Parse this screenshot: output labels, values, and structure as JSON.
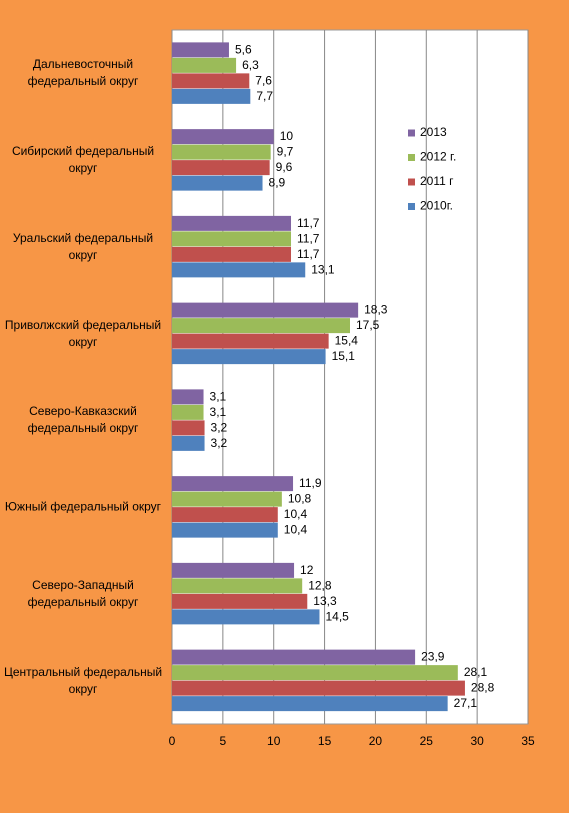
{
  "chart_data": {
    "type": "hbar",
    "categories": [
      "Дальневосточный федеральный округ",
      "Сибирский федеральный округ",
      "Уральский федеральный округ",
      "Приволжский федеральный округ",
      "Северо-Кавказский федеральный округ",
      "Южный федеральный округ",
      "Северо-Западный федеральный округ",
      "Центральный федеральный округ"
    ],
    "series": [
      {
        "name": "2013",
        "color": "#8064a2",
        "values": [
          5.6,
          10,
          11.7,
          18.3,
          3.1,
          11.9,
          12,
          23.9
        ],
        "value_labels": [
          "5,6",
          "10",
          "11,7",
          "18,3",
          "3,1",
          "11,9",
          "12",
          "23,9"
        ]
      },
      {
        "name": "2012 г.",
        "color": "#9bbb59",
        "values": [
          6.3,
          9.7,
          11.7,
          17.5,
          3.1,
          10.8,
          12.8,
          28.1
        ],
        "value_labels": [
          "6,3",
          "9,7",
          "11,7",
          "17,5",
          "3,1",
          "10,8",
          "12,8",
          "28,1"
        ]
      },
      {
        "name": "2011 г",
        "color": "#c0504d",
        "values": [
          7.6,
          9.6,
          11.7,
          15.4,
          3.2,
          10.4,
          13.3,
          28.8
        ],
        "value_labels": [
          "7,6",
          "9,6",
          "11,7",
          "15,4",
          "3,2",
          "10,4",
          "13,3",
          "28,8"
        ]
      },
      {
        "name": "2010г.",
        "color": "#4f81bd",
        "values": [
          7.7,
          8.9,
          13.1,
          15.1,
          3.2,
          10.4,
          14.5,
          27.1
        ],
        "value_labels": [
          "7,7",
          "8,9",
          "13,1",
          "15,1",
          "3,2",
          "10,4",
          "14,5",
          "27,1"
        ]
      }
    ],
    "xlim": [
      0,
      35
    ],
    "xticks": [
      0,
      5,
      10,
      15,
      20,
      25,
      30,
      35
    ],
    "grid": true,
    "legend": "upper-right"
  }
}
